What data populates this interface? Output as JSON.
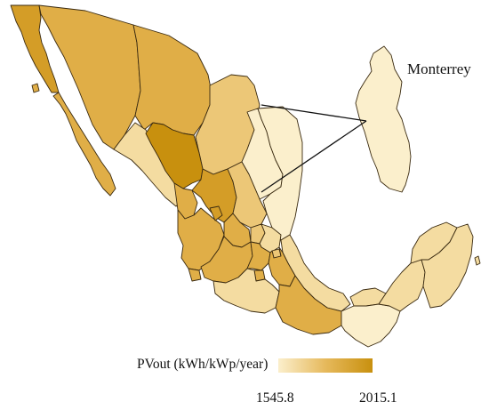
{
  "map": {
    "inset_label": "Monterrey",
    "legend": {
      "title": "PVout (kWh/kWp/year)",
      "min_label": "1545.8",
      "max_label": "2015.1",
      "color_low": "#fbefcc",
      "color_high": "#c8900e"
    },
    "colors": {
      "c1": "#fbefcc",
      "c2": "#f4dca1",
      "c3": "#ecc777",
      "c4": "#e0ae47",
      "c5": "#d49d27",
      "c6": "#c8900e",
      "stroke": "#3a2a10"
    }
  }
}
